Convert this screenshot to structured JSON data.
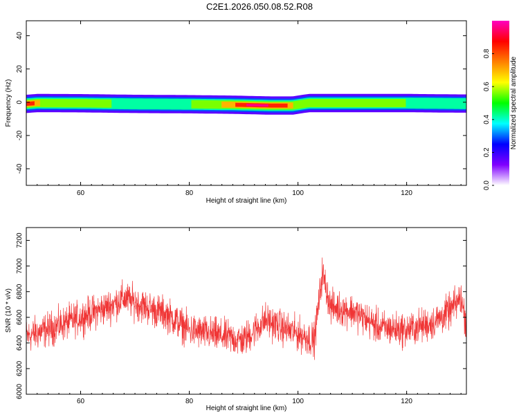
{
  "title": "C2E1.2026.050.08.52.R08",
  "chart_data": [
    {
      "type": "heatmap",
      "xlabel": "Height of straight line (km)",
      "ylabel": "Frequency (Hz)",
      "xlim": [
        50,
        131
      ],
      "ylim": [
        -50,
        49
      ],
      "xticks": [
        "60",
        "80",
        "100",
        "120"
      ],
      "yticks": [
        "-40",
        "-20",
        "0",
        "20",
        "40"
      ],
      "colorbar": {
        "label": "Normalized spectral amplitude",
        "range": [
          0,
          1
        ],
        "ticks": [
          "0.0",
          "0.2",
          "0.4",
          "0.6",
          "0.8"
        ],
        "colors": [
          "#ffffff",
          "#8000ff",
          "#0000ff",
          "#00ffff",
          "#00ff00",
          "#ffff00",
          "#ff8000",
          "#ff0000",
          "#ff00c0"
        ]
      },
      "band": {
        "center_hz": [
          [
            50,
            -1
          ],
          [
            52,
            -0.5
          ],
          [
            60,
            -0.6
          ],
          [
            70,
            -1
          ],
          [
            80,
            -1.2
          ],
          [
            88,
            -1.5
          ],
          [
            95,
            -2
          ],
          [
            99,
            -2
          ],
          [
            102,
            -0.5
          ],
          [
            110,
            -0.5
          ],
          [
            120,
            -0.5
          ],
          [
            130,
            -0.8
          ]
        ],
        "peak_intensity": [
          [
            50,
            0.8
          ],
          [
            51,
            0.9
          ],
          [
            53,
            0.65
          ],
          [
            60,
            0.55
          ],
          [
            70,
            0.5
          ],
          [
            80,
            0.52
          ],
          [
            85,
            0.6
          ],
          [
            88,
            0.8
          ],
          [
            90,
            0.92
          ],
          [
            95,
            0.92
          ],
          [
            98,
            0.85
          ],
          [
            100,
            0.6
          ],
          [
            103,
            0.55
          ],
          [
            110,
            0.55
          ],
          [
            120,
            0.52
          ],
          [
            130,
            0.5
          ],
          [
            131,
            0.5
          ]
        ]
      }
    },
    {
      "type": "line",
      "xlabel": "Height of straight line (km)",
      "ylabel": "SNR (10 * v/v)",
      "xlim": [
        50,
        131
      ],
      "ylim": [
        6000,
        7300
      ],
      "xticks": [
        "60",
        "80",
        "100",
        "120"
      ],
      "yticks": [
        "6000",
        "6200",
        "6400",
        "6600",
        "6800",
        "7000",
        "7200"
      ],
      "color": "#f03535",
      "series": [
        {
          "name": "",
          "trend": [
            [
              50,
              6450
            ],
            [
              55,
              6520
            ],
            [
              60,
              6600
            ],
            [
              65,
              6680
            ],
            [
              68,
              6750
            ],
            [
              72,
              6680
            ],
            [
              76,
              6620
            ],
            [
              80,
              6500
            ],
            [
              85,
              6460
            ],
            [
              90,
              6420
            ],
            [
              94,
              6580
            ],
            [
              97,
              6520
            ],
            [
              100,
              6470
            ],
            [
              103,
              6420
            ],
            [
              104.5,
              6950
            ],
            [
              106,
              6680
            ],
            [
              110,
              6650
            ],
            [
              115,
              6520
            ],
            [
              120,
              6500
            ],
            [
              125,
              6560
            ],
            [
              128,
              6650
            ],
            [
              130,
              6750
            ],
            [
              131,
              6550
            ]
          ],
          "noise_amplitude": 140,
          "sample_count": 2000
        }
      ]
    }
  ]
}
